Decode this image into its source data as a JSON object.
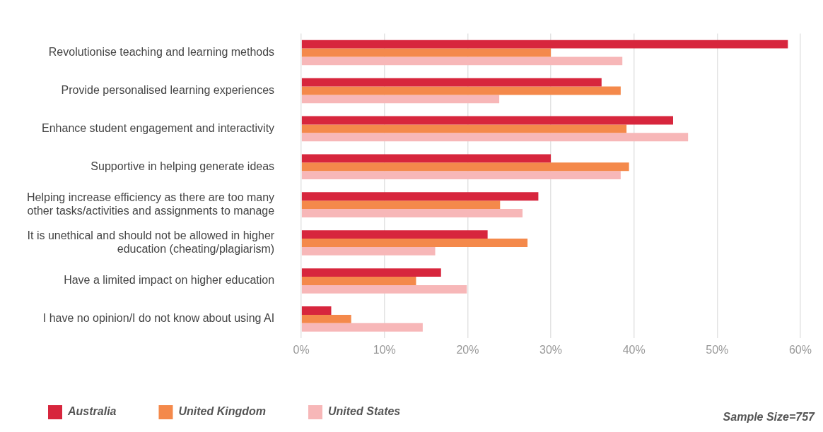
{
  "chart_data": {
    "type": "bar",
    "orientation": "horizontal",
    "categories": [
      "Revolutionise teaching and learning methods",
      "Provide personalised learning experiences",
      "Enhance student engagement and interactivity",
      "Supportive in helping generate ideas",
      "Helping increase efficiency as there are too many other tasks/activities and assignments to manage",
      "It is unethical and should not be allowed in higher education (cheating/plagiarism)",
      "Have a limited impact on higher education",
      "I have no opinion/I do not know about using AI"
    ],
    "series": [
      {
        "name": "Australia",
        "color": "#d7263d",
        "values": [
          58.5,
          36.1,
          44.7,
          30.0,
          28.5,
          22.4,
          16.8,
          3.6
        ]
      },
      {
        "name": "United Kingdom",
        "color": "#f4894b",
        "values": [
          30.0,
          38.4,
          39.1,
          39.4,
          23.9,
          27.2,
          13.8,
          6.0
        ]
      },
      {
        "name": "United States",
        "color": "#f7b7b8",
        "values": [
          38.6,
          23.8,
          46.5,
          38.4,
          26.6,
          16.1,
          19.9,
          14.6
        ]
      }
    ],
    "xlim": [
      0,
      60
    ],
    "xticks": [
      {
        "value": 0,
        "label": "0%"
      },
      {
        "value": 10,
        "label": "10%"
      },
      {
        "value": 20,
        "label": "20%"
      },
      {
        "value": 30,
        "label": "30%"
      },
      {
        "value": 40,
        "label": "40%"
      },
      {
        "value": 50,
        "label": "50%"
      },
      {
        "value": 60,
        "label": "60%"
      }
    ],
    "grid": "x",
    "legend": "bottom",
    "annotations": [
      "Sample Size=757"
    ]
  }
}
